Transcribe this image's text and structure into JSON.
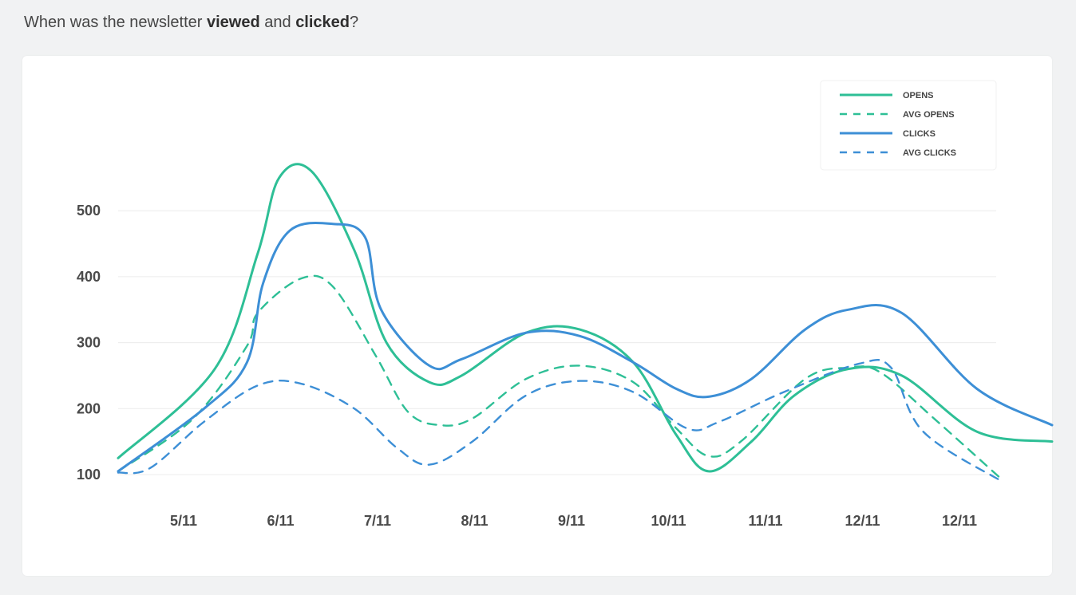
{
  "header": {
    "question_prefix": "When was the newsletter ",
    "viewed": "viewed",
    "and": " and ",
    "clicked": "clicked",
    "question_suffix": "?"
  },
  "chart_data": {
    "type": "line",
    "title": "When was the newsletter viewed and clicked?",
    "xlabel": "",
    "ylabel": "",
    "ylim": [
      50,
      620
    ],
    "yticks": [
      100,
      200,
      300,
      400,
      500
    ],
    "grid": true,
    "legend_position": "top-right",
    "categories": [
      "5/11",
      "6/11",
      "7/11",
      "8/11",
      "9/11",
      "10/11",
      "11/11",
      "12/11",
      "12/11"
    ],
    "x_range": [
      4,
      12.7
    ],
    "series": [
      {
        "name": "OPENS",
        "color": "#2ebf96",
        "dash": false,
        "points": [
          [
            4,
            125
          ],
          [
            4.9,
            260
          ],
          [
            5.3,
            435
          ],
          [
            5.5,
            550
          ],
          [
            5.8,
            560
          ],
          [
            6.2,
            440
          ],
          [
            6.5,
            300
          ],
          [
            6.9,
            240
          ],
          [
            7.2,
            250
          ],
          [
            7.8,
            315
          ],
          [
            8.3,
            320
          ],
          [
            8.8,
            270
          ],
          [
            9.2,
            160
          ],
          [
            9.5,
            105
          ],
          [
            9.9,
            150
          ],
          [
            10.3,
            220
          ],
          [
            10.8,
            260
          ],
          [
            11.3,
            250
          ],
          [
            12.0,
            165
          ],
          [
            12.7,
            150
          ]
        ]
      },
      {
        "name": "AVG OPENS",
        "color": "#2ebf96",
        "dash": true,
        "points": [
          [
            4,
            105
          ],
          [
            4.7,
            185
          ],
          [
            5.2,
            295
          ],
          [
            5.3,
            345
          ],
          [
            5.7,
            397
          ],
          [
            6.0,
            385
          ],
          [
            6.4,
            280
          ],
          [
            6.7,
            195
          ],
          [
            7.0,
            175
          ],
          [
            7.3,
            185
          ],
          [
            7.8,
            245
          ],
          [
            8.3,
            265
          ],
          [
            8.8,
            240
          ],
          [
            9.2,
            170
          ],
          [
            9.5,
            128
          ],
          [
            9.8,
            150
          ],
          [
            10.4,
            245
          ],
          [
            10.8,
            262
          ],
          [
            11.1,
            255
          ],
          [
            11.6,
            185
          ],
          [
            12.25,
            90
          ]
        ]
      },
      {
        "name": "CLICKS",
        "color": "#3d8fd6",
        "dash": false,
        "points": [
          [
            4,
            105
          ],
          [
            4.8,
            200
          ],
          [
            5.2,
            270
          ],
          [
            5.35,
            390
          ],
          [
            5.6,
            470
          ],
          [
            6.0,
            480
          ],
          [
            6.3,
            460
          ],
          [
            6.45,
            350
          ],
          [
            6.9,
            265
          ],
          [
            7.2,
            275
          ],
          [
            7.8,
            315
          ],
          [
            8.3,
            310
          ],
          [
            8.8,
            270
          ],
          [
            9.2,
            230
          ],
          [
            9.5,
            218
          ],
          [
            9.9,
            245
          ],
          [
            10.4,
            320
          ],
          [
            10.8,
            350
          ],
          [
            11.3,
            345
          ],
          [
            12.0,
            230
          ],
          [
            12.7,
            175
          ]
        ]
      },
      {
        "name": "AVG CLICKS",
        "color": "#3d8fd6",
        "dash": true,
        "points": [
          [
            4,
            103
          ],
          [
            4.3,
            110
          ],
          [
            4.8,
            180
          ],
          [
            5.3,
            235
          ],
          [
            5.7,
            238
          ],
          [
            6.2,
            200
          ],
          [
            6.6,
            140
          ],
          [
            6.9,
            115
          ],
          [
            7.3,
            150
          ],
          [
            7.8,
            220
          ],
          [
            8.3,
            242
          ],
          [
            8.8,
            225
          ],
          [
            9.3,
            170
          ],
          [
            9.6,
            180
          ],
          [
            10.2,
            225
          ],
          [
            10.9,
            268
          ],
          [
            11.2,
            262
          ],
          [
            11.5,
            165
          ],
          [
            12.25,
            88
          ]
        ]
      }
    ]
  }
}
